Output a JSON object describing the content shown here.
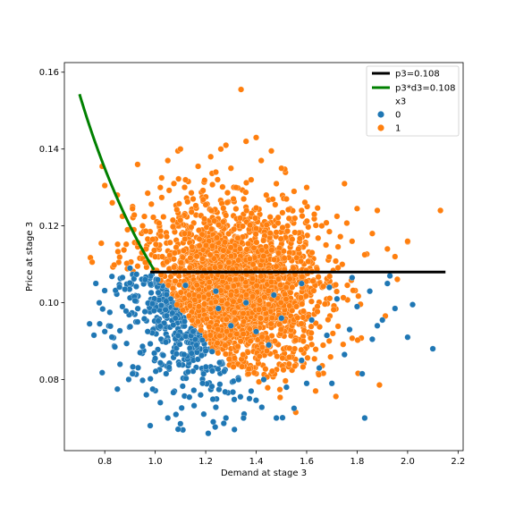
{
  "chart_data": {
    "type": "scatter",
    "title": "",
    "xlabel": "Demand at stage 3",
    "ylabel": "Price at stage 3",
    "xlim": [
      0.64,
      2.22
    ],
    "ylim": [
      0.0615,
      0.1625
    ],
    "x_ticks": [
      0.8,
      1.0,
      1.2,
      1.4,
      1.6,
      1.8,
      2.0,
      2.2
    ],
    "x_tick_labels": [
      "0.8",
      "1.0",
      "1.2",
      "1.4",
      "1.6",
      "1.8",
      "2.0",
      "2.2"
    ],
    "y_ticks": [
      0.08,
      0.1,
      0.12,
      0.14,
      0.16
    ],
    "y_tick_labels": [
      "0.08",
      "0.10",
      "0.12",
      "0.14",
      "0.16"
    ],
    "grid": false,
    "legend_placement": "top-right",
    "legend": {
      "lines": [
        {
          "label": "p3=0.108",
          "color": "#000000"
        },
        {
          "label": "p3*d3=0.108",
          "color": "#008000"
        }
      ],
      "hue_title": "x3",
      "hue_entries": [
        {
          "label": "0",
          "color": "#1f77b4"
        },
        {
          "label": "1",
          "color": "#ff7f0e"
        }
      ]
    },
    "series": [
      {
        "name": "p3=0.108",
        "kind": "line",
        "color": "#000000",
        "x": [
          0.98,
          2.15
        ],
        "y": [
          0.108,
          0.108
        ]
      },
      {
        "name": "p3*d3=0.108",
        "kind": "curve",
        "color": "#008000",
        "formula": "y = 0.108 / x",
        "x_range": [
          0.7,
          0.995
        ]
      }
    ],
    "scatter_groups": [
      {
        "name": "0",
        "color": "#1f77b4",
        "points": [
          [
            0.74,
            0.0945
          ],
          [
            0.78,
            0.0945
          ],
          [
            0.79,
            0.0818
          ],
          [
            0.8,
            0.0925
          ],
          [
            0.82,
            0.0975
          ],
          [
            0.84,
            0.0885
          ],
          [
            0.85,
            0.0775
          ],
          [
            0.87,
            0.099
          ],
          [
            0.88,
            0.1035
          ],
          [
            0.9,
            0.109
          ],
          [
            0.91,
            0.0815
          ],
          [
            0.92,
            0.1005
          ],
          [
            0.93,
            0.095
          ],
          [
            0.94,
            0.087
          ],
          [
            0.95,
            0.0798
          ],
          [
            0.96,
            0.106
          ],
          [
            0.97,
            0.0925
          ],
          [
            0.98,
            0.068
          ],
          [
            0.99,
            0.0775
          ],
          [
            1.0,
            0.0855
          ],
          [
            1.02,
            0.074
          ],
          [
            1.05,
            0.07
          ],
          [
            1.08,
            0.096
          ],
          [
            1.1,
            0.0685
          ],
          [
            1.13,
            0.082
          ],
          [
            1.15,
            0.0925
          ],
          [
            1.18,
            0.076
          ],
          [
            1.2,
            0.0875
          ],
          [
            1.21,
            0.066
          ],
          [
            1.23,
            0.069
          ],
          [
            1.25,
            0.0985
          ],
          [
            1.28,
            0.07
          ],
          [
            1.3,
            0.094
          ],
          [
            1.33,
            0.08
          ],
          [
            1.35,
            0.07
          ],
          [
            1.38,
            0.077
          ],
          [
            1.4,
            0.0925
          ],
          [
            1.43,
            0.08
          ],
          [
            1.45,
            0.089
          ],
          [
            1.48,
            0.07
          ],
          [
            1.5,
            0.096
          ],
          [
            1.52,
            0.078
          ],
          [
            1.55,
            0.0725
          ],
          [
            1.58,
            0.085
          ],
          [
            1.6,
            0.079
          ],
          [
            1.62,
            0.0955
          ],
          [
            1.65,
            0.083
          ],
          [
            1.68,
            0.0915
          ],
          [
            1.7,
            0.079
          ],
          [
            1.72,
            0.101
          ],
          [
            1.75,
            0.0865
          ],
          [
            1.77,
            0.093
          ],
          [
            1.8,
            0.099
          ],
          [
            1.82,
            0.0815
          ],
          [
            1.83,
            0.07
          ],
          [
            1.86,
            0.0905
          ],
          [
            1.88,
            0.094
          ],
          [
            1.9,
            0.0955
          ],
          [
            1.92,
            0.105
          ],
          [
            1.95,
            0.0985
          ],
          [
            2.0,
            0.091
          ],
          [
            2.02,
            0.0995
          ],
          [
            2.1,
            0.088
          ],
          [
            1.01,
            0.106
          ],
          [
            1.12,
            0.1045
          ],
          [
            1.24,
            0.103
          ],
          [
            1.36,
            0.1
          ],
          [
            1.47,
            0.102
          ],
          [
            1.58,
            0.105
          ],
          [
            1.69,
            0.104
          ],
          [
            1.78,
            0.1065
          ],
          [
            1.85,
            0.103
          ],
          [
            1.93,
            0.107
          ]
        ]
      },
      {
        "name": "1",
        "color": "#ff7f0e",
        "points": [
          [
            0.79,
            0.1355
          ],
          [
            0.8,
            0.1305
          ],
          [
            0.83,
            0.126
          ],
          [
            0.85,
            0.128
          ],
          [
            0.87,
            0.1225
          ],
          [
            0.89,
            0.119
          ],
          [
            0.91,
            0.1245
          ],
          [
            0.93,
            0.136
          ],
          [
            0.95,
            0.12
          ],
          [
            0.97,
            0.1285
          ],
          [
            0.99,
            0.1165
          ],
          [
            1.02,
            0.13
          ],
          [
            1.05,
            0.137
          ],
          [
            1.07,
            0.1215
          ],
          [
            1.09,
            0.1395
          ],
          [
            1.1,
            0.14
          ],
          [
            1.12,
            0.132
          ],
          [
            1.15,
            0.127
          ],
          [
            1.17,
            0.1355
          ],
          [
            1.2,
            0.1255
          ],
          [
            1.22,
            0.138
          ],
          [
            1.24,
            0.134
          ],
          [
            1.26,
            0.14
          ],
          [
            1.28,
            0.141
          ],
          [
            1.3,
            0.135
          ],
          [
            1.32,
            0.13
          ],
          [
            1.34,
            0.1555
          ],
          [
            1.36,
            0.142
          ],
          [
            1.38,
            0.132
          ],
          [
            1.4,
            0.143
          ],
          [
            1.42,
            0.137
          ],
          [
            1.44,
            0.128
          ],
          [
            1.46,
            0.1395
          ],
          [
            1.48,
            0.131
          ],
          [
            1.5,
            0.135
          ],
          [
            1.52,
            0.127
          ],
          [
            1.55,
            0.129
          ],
          [
            1.58,
            0.124
          ],
          [
            1.6,
            0.13
          ],
          [
            1.63,
            0.123
          ],
          [
            1.66,
            0.12
          ],
          [
            1.69,
            0.1185
          ],
          [
            1.72,
            0.1225
          ],
          [
            1.75,
            0.131
          ],
          [
            1.78,
            0.116
          ],
          [
            1.8,
            0.1245
          ],
          [
            1.83,
            0.1125
          ],
          [
            1.86,
            0.118
          ],
          [
            1.88,
            0.124
          ],
          [
            1.92,
            0.114
          ],
          [
            1.95,
            0.112
          ],
          [
            2.0,
            0.116
          ],
          [
            2.13,
            0.124
          ]
        ]
      }
    ]
  }
}
